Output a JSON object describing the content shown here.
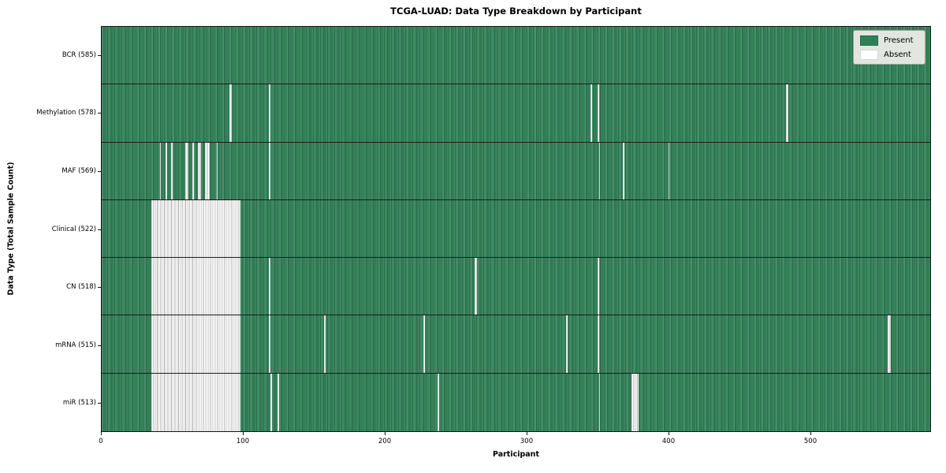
{
  "title": "TCGA-LUAD: Data Type Breakdown by Participant",
  "colors": {
    "present": "#2e8157",
    "present_dark_stripe": "#1e5c3c",
    "present_light_stripe": "#4d9971",
    "absent": "#ffffff",
    "absent_stripe": "#ababab",
    "legend_background": "#e2e6e0",
    "axis": "#141414"
  },
  "legend": {
    "items": [
      {
        "label": "Present",
        "swatch": "present"
      },
      {
        "label": "Absent",
        "swatch": "absent"
      }
    ]
  },
  "chart_data": {
    "type": "heatmap",
    "title": "TCGA-LUAD: Data Type Breakdown by Participant",
    "xlabel": "Participant",
    "ylabel": "Data Type (Total Sample Count)",
    "legend_entries": [
      "Present",
      "Absent"
    ],
    "legend_position": "upper right",
    "grid": "row separators only",
    "n_participants": 585,
    "x_range": [
      0,
      585
    ],
    "x_ticks": [
      0,
      100,
      200,
      300,
      400,
      500
    ],
    "value_encoding": {
      "present": "green cell",
      "absent": "white cell"
    },
    "rows": [
      {
        "name": "BCR",
        "label": "BCR (585)",
        "present_count": 585,
        "absent_count": 0,
        "absent_ranges": []
      },
      {
        "name": "Methylation",
        "label": "Methylation (578)",
        "present_count": 578,
        "absent_count": 7,
        "absent_ranges": [
          [
            90,
            91
          ],
          [
            118,
            118
          ],
          [
            345,
            345
          ],
          [
            350,
            350
          ],
          [
            483,
            484
          ]
        ]
      },
      {
        "name": "MAF",
        "label": "MAF (569)",
        "present_count": 569,
        "absent_count": 16,
        "absent_ranges": [
          [
            41,
            41
          ],
          [
            45,
            45
          ],
          [
            49,
            49
          ],
          [
            59,
            60
          ],
          [
            64,
            64
          ],
          [
            68,
            69
          ],
          [
            73,
            75
          ],
          [
            81,
            81
          ],
          [
            118,
            118
          ],
          [
            351,
            351
          ],
          [
            368,
            368
          ],
          [
            400,
            400
          ]
        ]
      },
      {
        "name": "Clinical",
        "label": "Clinical (522)",
        "present_count": 522,
        "absent_count": 63,
        "absent_ranges": [
          [
            35,
            97
          ]
        ]
      },
      {
        "name": "CN",
        "label": "CN (518)",
        "present_count": 518,
        "absent_count": 67,
        "absent_ranges": [
          [
            35,
            97
          ],
          [
            118,
            118
          ],
          [
            263,
            264
          ],
          [
            350,
            350
          ]
        ]
      },
      {
        "name": "mRNA",
        "label": "mRNA (515)",
        "present_count": 515,
        "absent_count": 70,
        "absent_ranges": [
          [
            35,
            97
          ],
          [
            118,
            118
          ],
          [
            157,
            157
          ],
          [
            227,
            227
          ],
          [
            328,
            328
          ],
          [
            350,
            350
          ],
          [
            555,
            556
          ]
        ]
      },
      {
        "name": "miR",
        "label": "miR (513)",
        "present_count": 513,
        "absent_count": 72,
        "absent_ranges": [
          [
            35,
            97
          ],
          [
            119,
            119
          ],
          [
            124,
            124
          ],
          [
            237,
            237
          ],
          [
            351,
            351
          ],
          [
            374,
            378
          ]
        ]
      }
    ]
  }
}
